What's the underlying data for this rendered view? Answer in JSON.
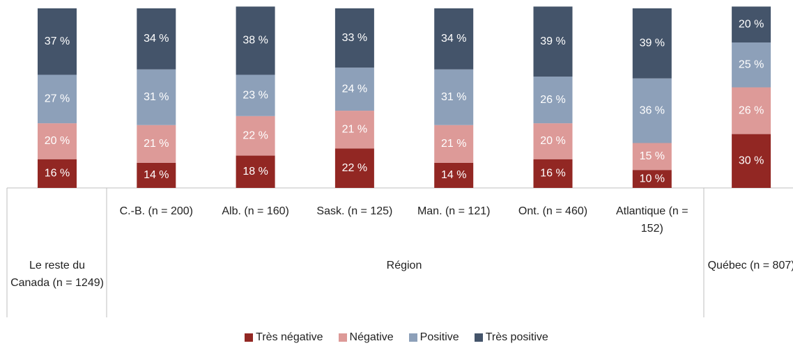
{
  "chart_data": {
    "type": "stacked_bar",
    "categories": [
      "Le reste du Canada (n = 1249)",
      "C.-B. (n = 200)",
      "Alb. (n = 160)",
      "Sask. (n = 125)",
      "Man. (n = 121)",
      "Ont. (n = 460)",
      "Atlantique (n = 152)",
      "Québec (n = 807)"
    ],
    "group_label": "Région",
    "ylim": [
      0,
      100
    ],
    "series": [
      {
        "name": "Très négative",
        "color": "#922723",
        "values": [
          16,
          14,
          18,
          22,
          14,
          16,
          10,
          30
        ],
        "value_labels": [
          "16 %",
          "14 %",
          "18 %",
          "22 %",
          "14 %",
          "16 %",
          "10 %",
          "30 %"
        ]
      },
      {
        "name": "Négative",
        "color": "#dd9a98",
        "values": [
          20,
          21,
          22,
          21,
          21,
          20,
          15,
          26
        ],
        "value_labels": [
          "20 %",
          "21 %",
          "22 %",
          "21 %",
          "21 %",
          "20 %",
          "15 %",
          "26 %"
        ]
      },
      {
        "name": "Positive",
        "color": "#8da0b9",
        "values": [
          27,
          31,
          23,
          24,
          31,
          26,
          36,
          25
        ],
        "value_labels": [
          "27 %",
          "31 %",
          "23 %",
          "24 %",
          "31 %",
          "26 %",
          "36 %",
          "25 %"
        ]
      },
      {
        "name": "Très positive",
        "color": "#44546a",
        "values": [
          37,
          34,
          38,
          33,
          34,
          39,
          39,
          20
        ],
        "value_labels": [
          "37 %",
          "34 %",
          "38 %",
          "33 %",
          "34 %",
          "39 %",
          "39 %",
          "20 %"
        ]
      }
    ]
  }
}
